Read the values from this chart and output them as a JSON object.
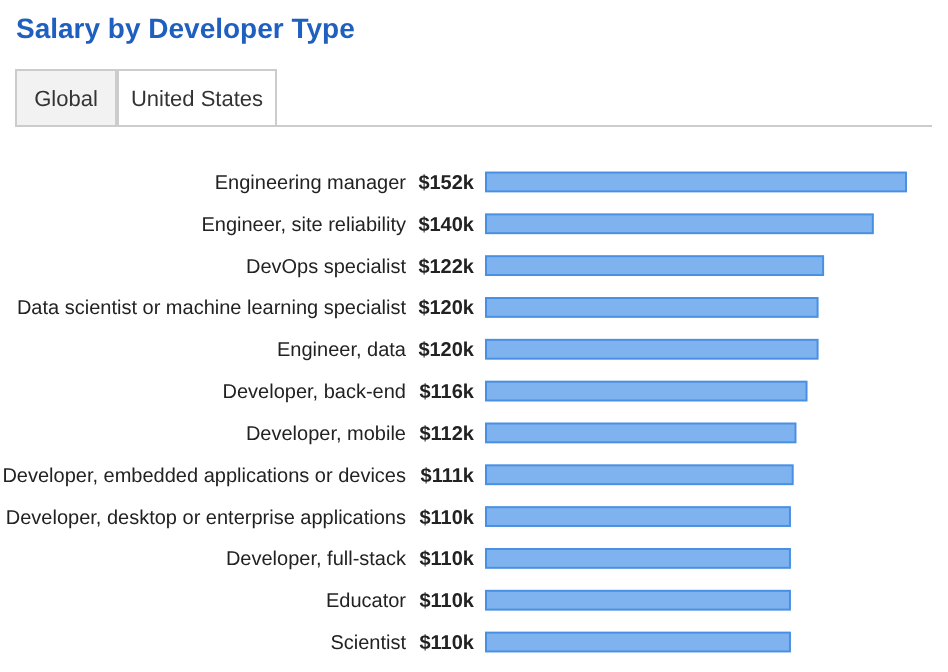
{
  "chart_data": {
    "type": "bar",
    "orientation": "horizontal",
    "title": "Salary by Developer Type",
    "annotations": [
      "Global",
      "United States"
    ],
    "categories": [
      "Engineering manager",
      "Engineer, site reliability",
      "DevOps specialist",
      "Data scientist or machine learning specialist",
      "Engineer, data",
      "Developer, back-end",
      "Developer, mobile",
      "Developer, embedded applications or devices",
      "Developer, desktop or enterprise applications",
      "Developer, full-stack",
      "Educator",
      "Scientist"
    ],
    "values": [
      152,
      140,
      122,
      120,
      120,
      116,
      112,
      111,
      110,
      110,
      110,
      110
    ],
    "value_labels": [
      "$152k",
      "$140k",
      "$122k",
      "$120k",
      "$120k",
      "$116k",
      "$112k",
      "$111k",
      "$110k",
      "$110k",
      "$110k",
      "$110k"
    ],
    "color": "#7fb3f0"
  }
}
